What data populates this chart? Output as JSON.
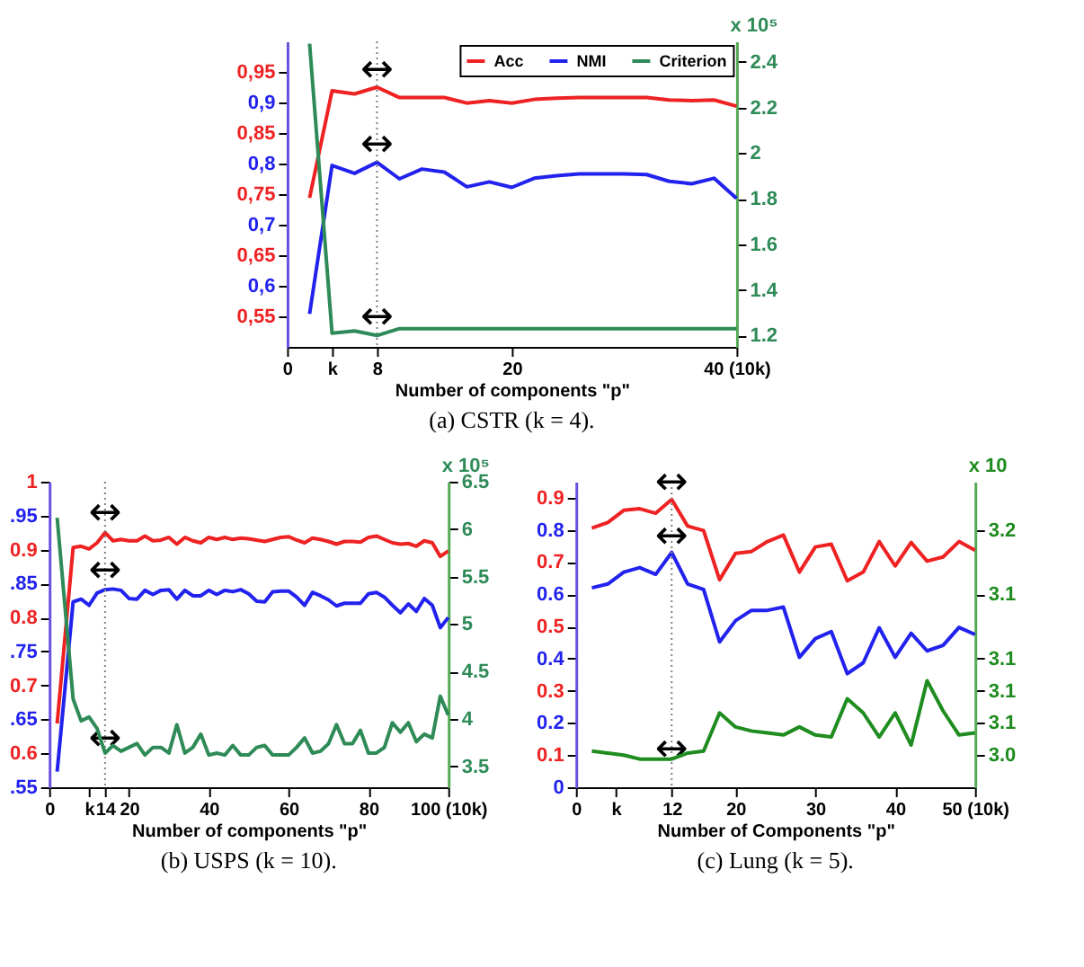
{
  "chart_data": [
    {
      "type": "line",
      "title": "(a) CSTR (k = 4).",
      "xlabel": "Number of components \"p\"",
      "y2label": "x 10⁵",
      "legend": "top right",
      "line_style": "solid",
      "x": [
        2,
        4,
        6,
        8,
        10,
        12,
        14,
        16,
        18,
        20,
        22,
        24,
        26,
        28,
        30,
        32,
        34,
        36,
        38,
        40
      ],
      "xlim": [
        0,
        40
      ],
      "xticks": [
        0,
        {
          "value": 4,
          "label": "k"
        },
        8,
        20,
        {
          "value": 40,
          "label": "40 (10k)"
        }
      ],
      "ylim": [
        0.5,
        1.0
      ],
      "yticks": [
        {
          "value": 0.55,
          "label": "0,55"
        },
        {
          "value": 0.6,
          "label": "0,6"
        },
        {
          "value": 0.65,
          "label": "0,65"
        },
        {
          "value": 0.7,
          "label": "0,7"
        },
        {
          "value": 0.75,
          "label": "0,75"
        },
        {
          "value": 0.8,
          "label": "0,8"
        },
        {
          "value": 0.85,
          "label": "0,85"
        },
        {
          "value": 0.9,
          "label": "0,9"
        },
        {
          "value": 0.95,
          "label": "0,95"
        }
      ],
      "y2lim": [
        1.15,
        2.49
      ],
      "y2ticks": [
        1.2,
        1.4,
        1.6,
        1.8,
        2,
        2.2,
        2.4
      ],
      "ref_lines": [
        {
          "axis": "x",
          "value": 8,
          "color": "#808080",
          "line_style": "dotted"
        }
      ],
      "annotations": [
        {
          "text": "↔",
          "x": 8,
          "y": 0.928
        },
        {
          "text": "↔",
          "x": 8,
          "y": 0.806
        },
        {
          "text": "↔",
          "x": 8,
          "y": 0.524
        }
      ],
      "series": [
        {
          "name": "Acc",
          "color": "#ee2222",
          "values": [
            0.744,
            0.919,
            0.914,
            0.925,
            0.908,
            0.908,
            0.908,
            0.899,
            0.903,
            0.899,
            0.905,
            0.907,
            0.908,
            0.908,
            0.908,
            0.908,
            0.904,
            0.903,
            0.904,
            0.894
          ]
        },
        {
          "name": "NMI",
          "color": "#2222ee",
          "values": [
            0.554,
            0.797,
            0.784,
            0.802,
            0.775,
            0.791,
            0.786,
            0.762,
            0.77,
            0.761,
            0.776,
            0.78,
            0.783,
            0.783,
            0.783,
            0.782,
            0.771,
            0.767,
            0.776,
            0.743
          ]
        },
        {
          "name": "Criterion",
          "color": "#2e8b57",
          "axis": "y2",
          "values": [
            2.48,
            1.21,
            1.22,
            1.2,
            1.23,
            1.23,
            1.23,
            1.23,
            1.23,
            1.23,
            1.23,
            1.23,
            1.23,
            1.23,
            1.23,
            1.23,
            1.23,
            1.23,
            1.23,
            1.23
          ]
        }
      ]
    },
    {
      "type": "line",
      "title": "(b) USPS (k = 10).",
      "xlabel": "Number of components \"p\"",
      "y2label": "x 10⁵",
      "line_style": "solid",
      "x": [
        2,
        6,
        8,
        10,
        12,
        14,
        16,
        18,
        20,
        22,
        24,
        26,
        28,
        30,
        32,
        34,
        36,
        38,
        40,
        42,
        44,
        46,
        48,
        50,
        52,
        54,
        56,
        58,
        60,
        62,
        64,
        66,
        68,
        70,
        72,
        74,
        76,
        78,
        80,
        82,
        84,
        86,
        88,
        90,
        92,
        94,
        96,
        98,
        100
      ],
      "xlim": [
        0,
        100
      ],
      "xticks": [
        0,
        {
          "value": 10,
          "label": "k"
        },
        14,
        20,
        40,
        60,
        80,
        {
          "value": 100,
          "label": "100 (10k)"
        }
      ],
      "ylim": [
        0.55,
        1.0
      ],
      "yticks": [
        {
          "value": 0.55,
          "label": ".55"
        },
        0.6,
        {
          "value": 0.65,
          "label": ".65"
        },
        0.7,
        {
          "value": 0.75,
          "label": ".75"
        },
        0.8,
        {
          "value": 0.85,
          "label": ".85"
        },
        0.9,
        {
          "value": 0.95,
          "label": ".95"
        },
        1
      ],
      "y2lim": [
        3.28,
        6.5
      ],
      "y2ticks": [
        3.5,
        4,
        4.5,
        5,
        5.5,
        6,
        6.5
      ],
      "ref_lines": [
        {
          "axis": "x",
          "value": 14,
          "color": "#808080",
          "line_style": "dotted"
        }
      ],
      "annotations": [
        {
          "text": "↔",
          "x": 14,
          "y": 0.931
        },
        {
          "text": "↔",
          "x": 14,
          "y": 0.847
        },
        {
          "text": "↔",
          "x": 14,
          "y": 0.599
        }
      ],
      "series": [
        {
          "color": "#ee2222",
          "values": [
            0.644,
            0.903,
            0.905,
            0.901,
            0.91,
            0.925,
            0.913,
            0.915,
            0.913,
            0.913,
            0.92,
            0.913,
            0.914,
            0.918,
            0.908,
            0.918,
            0.913,
            0.91,
            0.918,
            0.915,
            0.918,
            0.915,
            0.917,
            0.916,
            0.914,
            0.912,
            0.915,
            0.918,
            0.919,
            0.914,
            0.91,
            0.917,
            0.915,
            0.912,
            0.908,
            0.912,
            0.912,
            0.911,
            0.918,
            0.92,
            0.915,
            0.91,
            0.908,
            0.909,
            0.905,
            0.913,
            0.91,
            0.89,
            0.898
          ]
        },
        {
          "color": "#2222ee",
          "values": [
            0.573,
            0.823,
            0.827,
            0.818,
            0.836,
            0.841,
            0.842,
            0.84,
            0.828,
            0.827,
            0.84,
            0.834,
            0.84,
            0.841,
            0.827,
            0.84,
            0.832,
            0.832,
            0.84,
            0.834,
            0.84,
            0.838,
            0.841,
            0.835,
            0.824,
            0.823,
            0.838,
            0.839,
            0.839,
            0.83,
            0.818,
            0.837,
            0.832,
            0.826,
            0.817,
            0.821,
            0.821,
            0.821,
            0.835,
            0.837,
            0.83,
            0.818,
            0.807,
            0.82,
            0.809,
            0.828,
            0.818,
            0.785,
            0.8
          ]
        },
        {
          "color": "#2e8b57",
          "axis": "y2",
          "values": [
            6.12,
            4.21,
            3.98,
            4.02,
            3.9,
            3.64,
            3.72,
            3.66,
            3.7,
            3.74,
            3.62,
            3.7,
            3.7,
            3.64,
            3.94,
            3.64,
            3.7,
            3.84,
            3.62,
            3.64,
            3.62,
            3.72,
            3.62,
            3.62,
            3.7,
            3.72,
            3.62,
            3.62,
            3.62,
            3.7,
            3.8,
            3.64,
            3.66,
            3.74,
            3.94,
            3.74,
            3.74,
            3.88,
            3.64,
            3.64,
            3.7,
            3.96,
            3.86,
            3.96,
            3.76,
            3.84,
            3.8,
            4.24,
            4.04
          ]
        }
      ]
    },
    {
      "type": "line",
      "title": "(c) Lung (k = 5).",
      "xlabel": "Number of Components \"p\"",
      "y2label": "x 10",
      "line_style": "solid",
      "x": [
        2,
        4,
        6,
        8,
        10,
        12,
        14,
        16,
        18,
        20,
        22,
        24,
        26,
        28,
        30,
        32,
        34,
        36,
        38,
        40,
        42,
        44,
        46,
        48,
        50
      ],
      "xlim": [
        0,
        50
      ],
      "xticks": [
        0,
        {
          "value": 5,
          "label": "k"
        },
        12,
        20,
        30,
        40,
        {
          "value": 50,
          "label": "50 (10k)"
        }
      ],
      "ylim": [
        0,
        0.95
      ],
      "yticks": [
        0,
        0.1,
        0.2,
        0.3,
        0.4,
        0.5,
        0.6,
        0.7,
        0.8,
        0.9
      ],
      "y2lim": [
        3.029,
        3.181
      ],
      "y2ticks": [
        {
          "value": 3.045,
          "label": "3.0"
        },
        {
          "value": 3.061,
          "label": "3.1"
        },
        {
          "value": 3.077,
          "label": "3.1"
        },
        {
          "value": 3.093,
          "label": "3.1"
        },
        {
          "value": 3.125,
          "label": "3.1"
        },
        {
          "value": 3.157,
          "label": "3.2"
        }
      ],
      "ref_lines": [
        {
          "axis": "x",
          "value": 12,
          "color": "#808080",
          "line_style": "dotted"
        }
      ],
      "annotations": [
        {
          "text": "↔",
          "x": 12,
          "y": 0.9
        },
        {
          "text": "↔",
          "x": 12,
          "y": 0.733
        },
        {
          "text": "↔",
          "x": 12,
          "y": 0.071
        }
      ],
      "series": [
        {
          "color": "#ee2222",
          "values": [
            0.806,
            0.823,
            0.861,
            0.866,
            0.852,
            0.895,
            0.812,
            0.798,
            0.645,
            0.727,
            0.733,
            0.764,
            0.784,
            0.669,
            0.747,
            0.756,
            0.642,
            0.669,
            0.764,
            0.688,
            0.761,
            0.703,
            0.716,
            0.764,
            0.737
          ]
        },
        {
          "color": "#2222ee",
          "values": [
            0.62,
            0.632,
            0.669,
            0.683,
            0.662,
            0.73,
            0.632,
            0.615,
            0.452,
            0.518,
            0.55,
            0.55,
            0.56,
            0.404,
            0.462,
            0.484,
            0.353,
            0.387,
            0.496,
            0.404,
            0.479,
            0.424,
            0.441,
            0.497,
            0.475
          ]
        },
        {
          "color": "#1f8c1f",
          "axis": "y2",
          "values": [
            3.047,
            3.046,
            3.045,
            3.043,
            3.043,
            3.043,
            3.046,
            3.047,
            3.066,
            3.059,
            3.057,
            3.056,
            3.055,
            3.059,
            3.055,
            3.054,
            3.073,
            3.066,
            3.054,
            3.066,
            3.05,
            3.082,
            3.067,
            3.055,
            3.056
          ]
        }
      ]
    }
  ]
}
